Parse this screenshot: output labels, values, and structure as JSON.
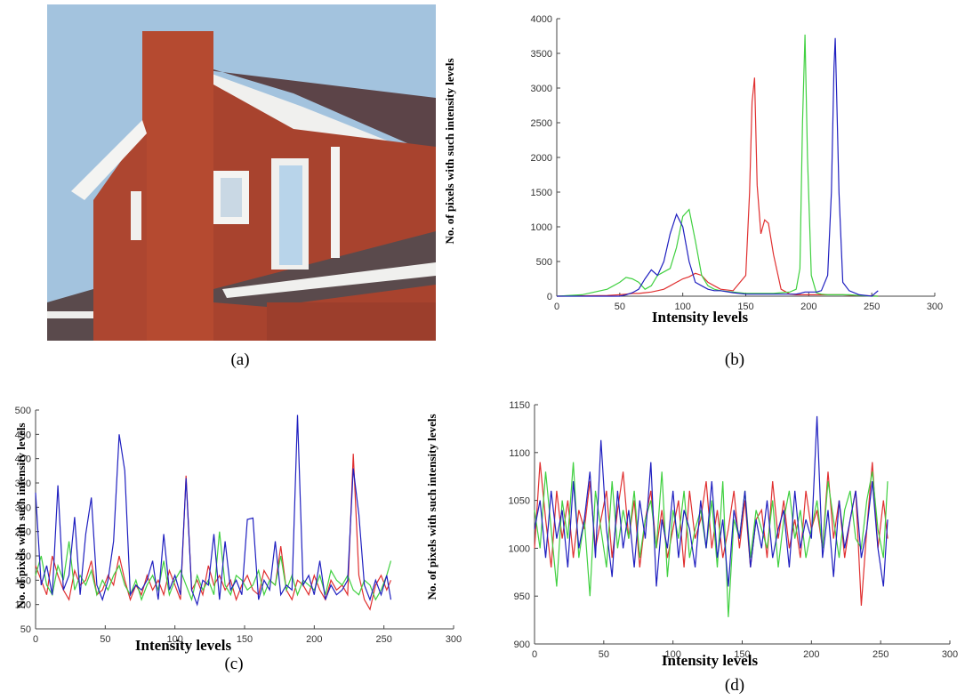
{
  "image": {
    "caption": "(a)"
  },
  "chart_data": [
    {
      "type": "line",
      "caption": "(b)",
      "xlabel": "Intensity levels",
      "ylabel": "No. of pixels with such intensity levels",
      "xlim": [
        0,
        300
      ],
      "xticks": [
        0,
        50,
        100,
        150,
        200,
        250,
        300
      ],
      "ylim": [
        0,
        4000
      ],
      "yticks": [
        0,
        500,
        1000,
        1500,
        2000,
        2500,
        3000,
        3500,
        4000
      ],
      "grid": false,
      "x": [
        0,
        20,
        40,
        50,
        55,
        60,
        65,
        70,
        75,
        80,
        85,
        90,
        95,
        100,
        105,
        110,
        115,
        120,
        125,
        130,
        140,
        150,
        153,
        155,
        157,
        159,
        162,
        165,
        168,
        172,
        178,
        185,
        190,
        193,
        195,
        197,
        199,
        202,
        206,
        210,
        215,
        218,
        220,
        221,
        222,
        224,
        227,
        232,
        240,
        250,
        255
      ],
      "series": [
        {
          "color": "#e03030",
          "values": [
            0,
            5,
            10,
            20,
            30,
            40,
            40,
            50,
            60,
            80,
            100,
            150,
            200,
            250,
            280,
            330,
            300,
            200,
            150,
            100,
            80,
            300,
            1500,
            2800,
            3150,
            1600,
            900,
            1100,
            1050,
            600,
            100,
            30,
            20,
            20,
            20,
            20,
            20,
            20,
            20,
            20,
            20,
            20,
            20,
            20,
            20,
            20,
            20,
            15,
            10,
            5,
            0
          ]
        },
        {
          "color": "#40d040",
          "values": [
            0,
            20,
            100,
            200,
            270,
            250,
            200,
            100,
            150,
            300,
            350,
            400,
            700,
            1150,
            1250,
            800,
            300,
            150,
            100,
            80,
            60,
            40,
            40,
            40,
            40,
            40,
            40,
            40,
            40,
            40,
            50,
            60,
            100,
            400,
            2500,
            3770,
            2000,
            300,
            50,
            30,
            20,
            20,
            20,
            20,
            20,
            20,
            20,
            20,
            10,
            0,
            0
          ]
        },
        {
          "color": "#2020c0",
          "values": [
            0,
            0,
            0,
            0,
            20,
            50,
            100,
            250,
            380,
            300,
            500,
            900,
            1180,
            1000,
            500,
            200,
            150,
            100,
            80,
            80,
            50,
            30,
            30,
            30,
            30,
            30,
            30,
            30,
            30,
            30,
            30,
            30,
            30,
            40,
            50,
            60,
            60,
            60,
            60,
            80,
            300,
            1500,
            3300,
            3720,
            3000,
            1500,
            200,
            80,
            20,
            0,
            80
          ]
        }
      ]
    },
    {
      "type": "line",
      "caption": "(c)",
      "xlabel": "Intensity levels",
      "ylabel": "No. of pixels with such intensity levels",
      "xlim": [
        0,
        300
      ],
      "xticks": [
        0,
        50,
        100,
        150,
        200,
        250,
        300
      ],
      "ylim": [
        50,
        500
      ],
      "yticks": [
        50,
        100,
        150,
        200,
        250,
        300,
        350,
        400,
        450,
        500
      ],
      "grid": false,
      "x": [
        0,
        4,
        8,
        12,
        16,
        20,
        24,
        28,
        32,
        36,
        40,
        44,
        48,
        52,
        56,
        60,
        64,
        68,
        72,
        76,
        80,
        84,
        88,
        92,
        96,
        100,
        104,
        108,
        112,
        116,
        120,
        124,
        128,
        132,
        136,
        140,
        144,
        148,
        152,
        156,
        160,
        164,
        168,
        172,
        176,
        180,
        184,
        188,
        192,
        196,
        200,
        204,
        208,
        212,
        216,
        220,
        224,
        228,
        232,
        236,
        240,
        244,
        248,
        252,
        255
      ],
      "series": [
        {
          "color": "#e03030",
          "values": [
            180,
            150,
            120,
            200,
            160,
            130,
            110,
            170,
            140,
            150,
            190,
            120,
            130,
            160,
            140,
            200,
            150,
            110,
            140,
            120,
            160,
            130,
            150,
            120,
            170,
            140,
            110,
            365,
            130,
            150,
            120,
            180,
            140,
            160,
            130,
            150,
            110,
            140,
            160,
            130,
            120,
            170,
            150,
            140,
            220,
            130,
            110,
            150,
            140,
            120,
            160,
            130,
            110,
            150,
            130,
            140,
            120,
            410,
            160,
            110,
            90,
            140,
            160,
            130,
            150
          ]
        },
        {
          "color": "#40d040",
          "values": [
            160,
            200,
            140,
            120,
            180,
            150,
            230,
            130,
            160,
            140,
            170,
            120,
            150,
            130,
            160,
            180,
            140,
            120,
            150,
            110,
            140,
            160,
            130,
            190,
            120,
            150,
            170,
            140,
            110,
            160,
            130,
            150,
            120,
            250,
            140,
            120,
            160,
            150,
            130,
            140,
            170,
            120,
            150,
            140,
            200,
            130,
            160,
            120,
            150,
            140,
            130,
            160,
            120,
            170,
            150,
            140,
            160,
            130,
            120,
            150,
            140,
            110,
            130,
            160,
            190
          ]
        },
        {
          "color": "#2020c0",
          "values": [
            330,
            140,
            180,
            120,
            345,
            130,
            160,
            280,
            120,
            245,
            320,
            140,
            110,
            150,
            230,
            450,
            375,
            120,
            140,
            130,
            150,
            190,
            110,
            245,
            130,
            160,
            120,
            360,
            130,
            100,
            150,
            140,
            245,
            110,
            230,
            130,
            150,
            120,
            275,
            278,
            110,
            150,
            130,
            230,
            120,
            140,
            130,
            490,
            140,
            160,
            120,
            190,
            110,
            140,
            120,
            130,
            150,
            380,
            285,
            140,
            110,
            150,
            120,
            160,
            110
          ]
        }
      ]
    },
    {
      "type": "line",
      "caption": "(d)",
      "xlabel": "Intensity levels",
      "ylabel": "No. of pixels with such intensity levels",
      "xlim": [
        0,
        300
      ],
      "xticks": [
        0,
        50,
        100,
        150,
        200,
        250,
        300
      ],
      "ylim": [
        900,
        1150
      ],
      "yticks": [
        900,
        950,
        1000,
        1050,
        1100,
        1150
      ],
      "grid": false,
      "x": [
        0,
        4,
        8,
        12,
        16,
        20,
        24,
        28,
        32,
        36,
        40,
        44,
        48,
        52,
        56,
        60,
        64,
        68,
        72,
        76,
        80,
        84,
        88,
        92,
        96,
        100,
        104,
        108,
        112,
        116,
        120,
        124,
        128,
        132,
        136,
        140,
        144,
        148,
        152,
        156,
        160,
        164,
        168,
        172,
        176,
        180,
        184,
        188,
        192,
        196,
        200,
        204,
        208,
        212,
        216,
        220,
        224,
        228,
        232,
        236,
        240,
        244,
        248,
        252,
        255
      ],
      "series": [
        {
          "color": "#e03030",
          "values": [
            1000,
            1090,
            1030,
            980,
            1060,
            1010,
            1050,
            990,
            1040,
            1020,
            1070,
            1000,
            1030,
            1060,
            990,
            1040,
            1080,
            1010,
            1050,
            980,
            1030,
            1060,
            1000,
            1040,
            990,
            1020,
            1050,
            980,
            1060,
            1010,
            1030,
            1070,
            1000,
            1040,
            990,
            1020,
            1060,
            1000,
            1050,
            980,
            1030,
            1040,
            990,
            1070,
            1010,
            1050,
            1000,
            1030,
            990,
            1060,
            1020,
            1040,
            1000,
            1080,
            1010,
            1050,
            990,
            1030,
            1060,
            940,
            1020,
            1090,
            1000,
            1050,
            1010
          ]
        },
        {
          "color": "#40d040",
          "values": [
            1040,
            1000,
            1080,
            1020,
            960,
            1050,
            1010,
            1090,
            990,
            1030,
            950,
            1060,
            1020,
            980,
            1070,
            1000,
            1040,
            1010,
            1060,
            990,
            1030,
            1050,
            1000,
            1080,
            970,
            1040,
            1010,
            1060,
            990,
            1020,
            1040,
            1000,
            1050,
            980,
            1070,
            928,
            1030,
            1010,
            1060,
            990,
            1040,
            1020,
            1000,
            1050,
            980,
            1030,
            1060,
            1010,
            1040,
            990,
            1020,
            1050,
            1000,
            1070,
            1030,
            990,
            1040,
            1060,
            1010,
            1000,
            1050,
            1080,
            1020,
            990,
            1070
          ]
        },
        {
          "color": "#2020c0",
          "values": [
            1020,
            1050,
            990,
            1060,
            1010,
            1040,
            980,
            1070,
            1000,
            1030,
            1080,
            990,
            1113,
            1020,
            970,
            1060,
            1000,
            1040,
            980,
            1050,
            1010,
            1090,
            960,
            1030,
            1000,
            1060,
            990,
            1040,
            1020,
            980,
            1050,
            1000,
            1070,
            990,
            1030,
            960,
            1040,
            1010,
            1060,
            980,
            1030,
            1000,
            1050,
            990,
            1020,
            1040,
            980,
            1060,
            1000,
            1030,
            1010,
            1138,
            990,
            1040,
            970,
            1050,
            1000,
            1030,
            1060,
            990,
            1020,
            1070,
            1000,
            960,
            1030
          ]
        }
      ]
    }
  ]
}
